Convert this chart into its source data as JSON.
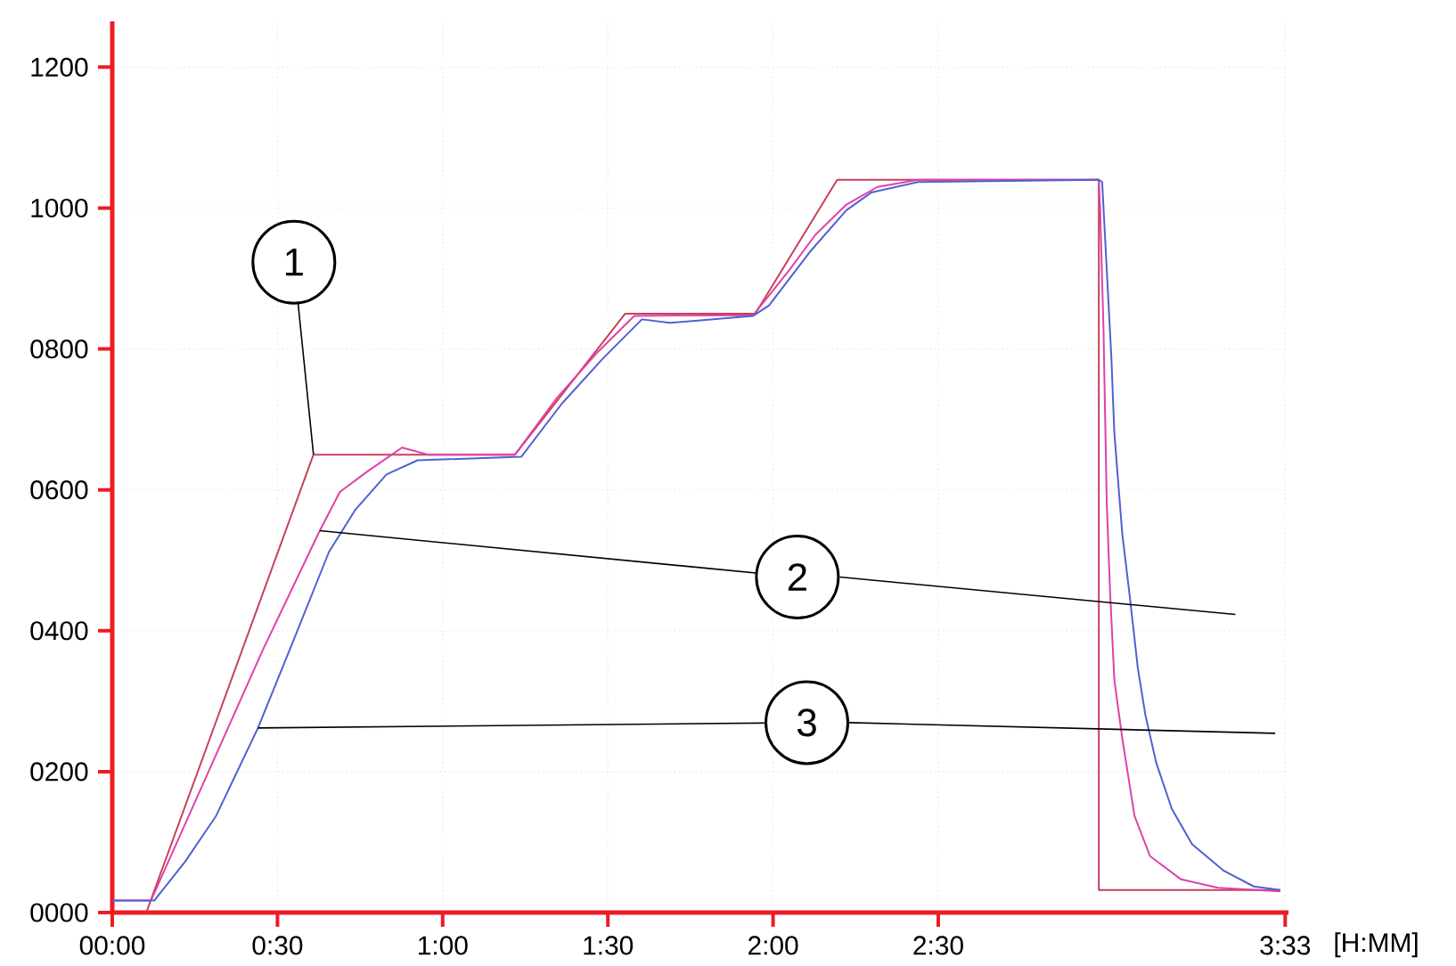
{
  "chart_data": {
    "type": "line",
    "xlabel": "[H:MM]",
    "xlim": [
      0,
      3.56
    ],
    "ylim": [
      0,
      1265
    ],
    "xticks": [
      {
        "value": 0,
        "label": "00:00"
      },
      {
        "value": 0.5,
        "label": "0:30"
      },
      {
        "value": 1,
        "label": "1:00"
      },
      {
        "value": 1.5,
        "label": "1:30"
      },
      {
        "value": 2,
        "label": "2:00"
      },
      {
        "value": 2.5,
        "label": "2:30"
      },
      {
        "value": 3.55,
        "label": "3:33"
      }
    ],
    "yticks": [
      {
        "value": 0,
        "label": "0000"
      },
      {
        "value": 200,
        "label": "0200"
      },
      {
        "value": 400,
        "label": "0400"
      },
      {
        "value": 600,
        "label": "0600"
      },
      {
        "value": 800,
        "label": "0800"
      },
      {
        "value": 1000,
        "label": "1000"
      },
      {
        "value": 1200,
        "label": "1200"
      }
    ],
    "grid": true,
    "marker": "none",
    "line_style": "solid",
    "series": [
      {
        "color": "#c8405a",
        "x": [
          0.103,
          0.609,
          1.219,
          1.552,
          1.946,
          2.194,
          2.986,
          2.986,
          3.535
        ],
        "values": [
          0,
          650,
          650,
          850,
          850,
          1040,
          1040,
          32,
          32
        ]
      },
      {
        "color": "#e040a8",
        "x": [
          0,
          0.117,
          0.455,
          0.628,
          0.689,
          0.769,
          0.877,
          0.956,
          1.219,
          1.345,
          1.472,
          1.58,
          1.94,
          2.049,
          2.128,
          2.222,
          2.316,
          2.438,
          2.986,
          2.99,
          3.0,
          3.01,
          3.02,
          3.033,
          3.057,
          3.094,
          3.141,
          3.235,
          3.347,
          3.535
        ],
        "values": [
          17,
          17,
          372,
          542,
          597,
          625,
          660,
          650,
          650,
          730,
          797,
          847,
          848,
          912,
          962,
          1005,
          1030,
          1040,
          1040,
          997,
          830,
          580,
          455,
          330,
          247,
          137,
          80,
          47,
          35,
          30
        ]
      },
      {
        "color": "#5060d0",
        "x": [
          0,
          0.127,
          0.22,
          0.314,
          0.441,
          0.549,
          0.656,
          0.736,
          0.83,
          0.924,
          1.238,
          1.36,
          1.486,
          1.603,
          1.688,
          1.94,
          1.988,
          2.11,
          2.222,
          2.297,
          2.438,
          2.986,
          2.996,
          3.01,
          3.024,
          3.033,
          3.057,
          3.08,
          3.104,
          3.127,
          3.16,
          3.207,
          3.268,
          3.362,
          3.455,
          3.535
        ],
        "values": [
          17,
          17,
          72,
          137,
          262,
          387,
          512,
          572,
          622,
          642,
          647,
          722,
          787,
          842,
          837,
          847,
          862,
          937,
          997,
          1022,
          1037,
          1040,
          1037,
          912,
          787,
          680,
          537,
          447,
          347,
          280,
          212,
          147,
          97,
          60,
          37,
          32
        ]
      }
    ],
    "annotations": [
      {
        "text": "1",
        "x": 0.609,
        "y": 650
      },
      {
        "text": "2",
        "x": 0.628,
        "y": 542
      },
      {
        "text": "3",
        "x": 0.441,
        "y": 262
      }
    ]
  }
}
